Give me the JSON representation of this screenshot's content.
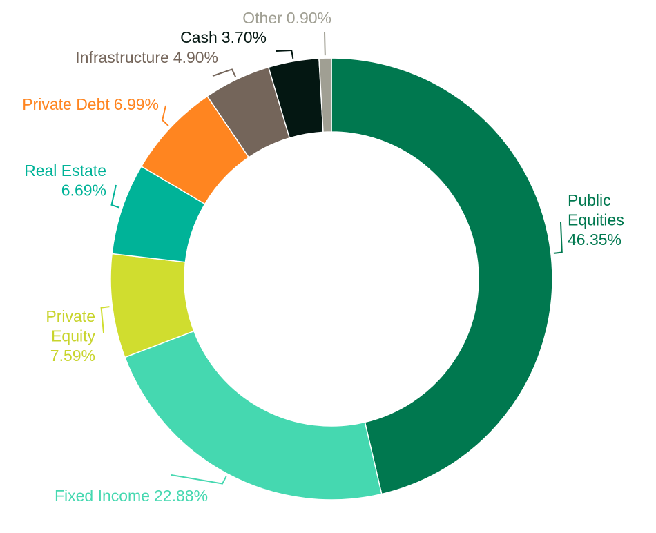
{
  "chart_data": {
    "type": "donut",
    "categories": [
      "Public Equities",
      "Fixed Income",
      "Private Equity",
      "Real Estate",
      "Private Debt",
      "Infrastructure",
      "Cash",
      "Other"
    ],
    "values": [
      46.35,
      22.88,
      7.59,
      6.69,
      6.99,
      4.9,
      3.7,
      0.9
    ],
    "value_labels": [
      "46.35%",
      "22.88%",
      "7.59%",
      "6.69%",
      "6.99%",
      "4.90%",
      "3.70%",
      "0.90%"
    ],
    "colors": [
      "#00784f",
      "#45d8b0",
      "#d0dd2f",
      "#00b398",
      "#ff8520",
      "#74655a",
      "#041712",
      "#a09f93"
    ]
  }
}
